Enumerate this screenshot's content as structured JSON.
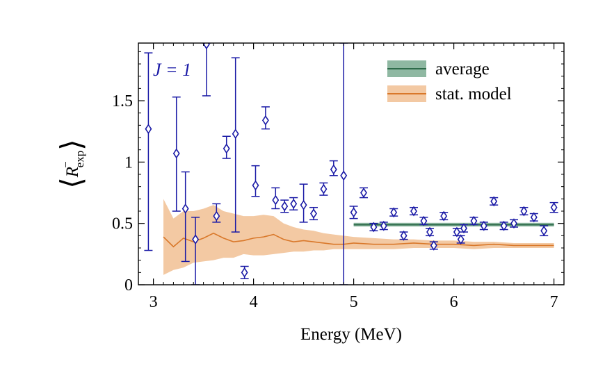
{
  "chart_data": {
    "type": "scatter",
    "xlabel": "Energy (MeV)",
    "ylabel": "⟨R⁻exp⟩",
    "ylabel_parts": {
      "base": "R",
      "sup": "−",
      "sub": "exp"
    },
    "annotation": "J = 1",
    "xlim": [
      2.85,
      7.1
    ],
    "ylim": [
      0,
      1.97
    ],
    "x_ticks": [
      3,
      4,
      5,
      6,
      7
    ],
    "y_ticks": [
      0,
      0.5,
      1,
      1.5
    ],
    "x_tick_labels": [
      "3",
      "4",
      "5",
      "6",
      "7"
    ],
    "y_tick_labels": [
      "0",
      "0.5",
      "1",
      "1.5"
    ],
    "grid": false,
    "legend_position": "top-right",
    "colors": {
      "data": "#1a1aa6",
      "average": "#2e6b4a",
      "average_band": "#8fb8a2",
      "model": "#d9782a",
      "model_band": "#f3c9a3"
    },
    "legend": [
      {
        "label": "average"
      },
      {
        "label": "stat. model"
      }
    ],
    "series": [
      {
        "name": "data",
        "marker": "diamond",
        "x": [
          2.95,
          3.23,
          3.32,
          3.42,
          3.53,
          3.63,
          3.73,
          3.82,
          3.91,
          4.02,
          4.12,
          4.22,
          4.31,
          4.4,
          4.5,
          4.6,
          4.7,
          4.8,
          4.9,
          5.0,
          5.1,
          5.2,
          5.3,
          5.4,
          5.5,
          5.6,
          5.7,
          5.76,
          5.8,
          5.9,
          6.03,
          6.07,
          6.1,
          6.2,
          6.3,
          6.4,
          6.5,
          6.6,
          6.7,
          6.8,
          6.9,
          7.0
        ],
        "y": [
          1.27,
          1.07,
          0.62,
          0.37,
          1.96,
          0.56,
          1.11,
          1.23,
          0.1,
          0.81,
          1.34,
          0.69,
          0.64,
          0.66,
          0.65,
          0.58,
          0.78,
          0.94,
          0.89,
          0.59,
          0.75,
          0.47,
          0.48,
          0.59,
          0.4,
          0.6,
          0.52,
          0.43,
          0.32,
          0.56,
          0.43,
          0.37,
          0.46,
          0.52,
          0.48,
          0.68,
          0.48,
          0.5,
          0.6,
          0.55,
          0.44,
          0.63
        ],
        "y_err_low": [
          0.99,
          0.47,
          0.43,
          0.37,
          0.42,
          0.05,
          0.08,
          0.8,
          0.05,
          0.09,
          0.07,
          0.07,
          0.05,
          0.05,
          0.14,
          0.05,
          0.05,
          0.05,
          0.89,
          0.05,
          0.04,
          0.03,
          0.03,
          0.03,
          0.03,
          0.03,
          0.03,
          0.03,
          0.03,
          0.03,
          0.03,
          0.03,
          0.03,
          0.03,
          0.03,
          0.03,
          0.03,
          0.03,
          0.03,
          0.03,
          0.04,
          0.04
        ],
        "y_err_high": [
          0.62,
          0.46,
          0.3,
          0.18,
          0.01,
          0.1,
          0.1,
          0.62,
          0.05,
          0.16,
          0.11,
          0.1,
          0.05,
          0.05,
          0.17,
          0.05,
          0.05,
          0.07,
          1.08,
          0.05,
          0.04,
          0.03,
          0.03,
          0.03,
          0.03,
          0.03,
          0.03,
          0.03,
          0.03,
          0.03,
          0.03,
          0.03,
          0.03,
          0.03,
          0.03,
          0.03,
          0.03,
          0.03,
          0.03,
          0.03,
          0.04,
          0.04
        ]
      },
      {
        "name": "average",
        "type": "band-line",
        "x": [
          5.0,
          7.0
        ],
        "y": 0.49,
        "y_low": 0.475,
        "y_high": 0.505
      },
      {
        "name": "stat. model",
        "type": "band-line",
        "x": [
          3.1,
          3.2,
          3.3,
          3.4,
          3.5,
          3.6,
          3.7,
          3.8,
          3.9,
          4.0,
          4.1,
          4.2,
          4.3,
          4.4,
          4.5,
          4.6,
          4.7,
          4.8,
          4.9,
          5.0,
          5.2,
          5.4,
          5.6,
          5.8,
          6.0,
          6.2,
          6.4,
          6.6,
          6.8,
          7.0
        ],
        "y": [
          0.39,
          0.31,
          0.38,
          0.35,
          0.38,
          0.42,
          0.38,
          0.35,
          0.36,
          0.38,
          0.39,
          0.41,
          0.37,
          0.35,
          0.36,
          0.35,
          0.34,
          0.33,
          0.33,
          0.34,
          0.33,
          0.33,
          0.34,
          0.33,
          0.33,
          0.32,
          0.33,
          0.32,
          0.32,
          0.32
        ],
        "y_low": [
          0.08,
          0.12,
          0.14,
          0.18,
          0.19,
          0.2,
          0.22,
          0.22,
          0.25,
          0.24,
          0.24,
          0.25,
          0.26,
          0.27,
          0.27,
          0.28,
          0.28,
          0.29,
          0.29,
          0.29,
          0.29,
          0.29,
          0.3,
          0.3,
          0.3,
          0.29,
          0.3,
          0.3,
          0.3,
          0.3
        ],
        "y_high": [
          0.7,
          0.54,
          0.6,
          0.6,
          0.62,
          0.65,
          0.6,
          0.58,
          0.56,
          0.56,
          0.57,
          0.56,
          0.5,
          0.47,
          0.45,
          0.44,
          0.42,
          0.41,
          0.4,
          0.39,
          0.38,
          0.37,
          0.37,
          0.36,
          0.36,
          0.35,
          0.35,
          0.34,
          0.34,
          0.34
        ]
      }
    ]
  }
}
